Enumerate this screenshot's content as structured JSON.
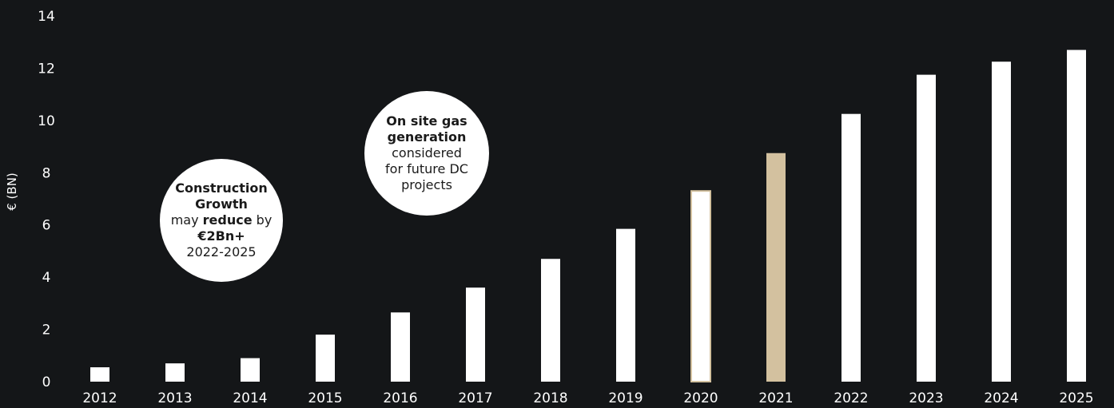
{
  "chart_data": {
    "type": "bar",
    "categories": [
      "2012",
      "2013",
      "2014",
      "2015",
      "2016",
      "2017",
      "2018",
      "2019",
      "2020",
      "2021",
      "2022",
      "2023",
      "2024",
      "2025"
    ],
    "values": [
      0.55,
      0.7,
      0.9,
      1.8,
      2.65,
      3.6,
      4.7,
      5.85,
      7.3,
      8.75,
      10.25,
      11.75,
      12.25,
      12.7
    ],
    "bar_styles": [
      "solid",
      "solid",
      "solid",
      "solid",
      "solid",
      "solid",
      "solid",
      "solid",
      "outlined",
      "tan",
      "solid",
      "solid",
      "solid",
      "solid"
    ],
    "ylabel": "€ (BN)",
    "ylim": [
      0,
      14
    ],
    "yticks": [
      0,
      2,
      4,
      6,
      8,
      10,
      12,
      14
    ],
    "grid": false,
    "colors": {
      "background": "#141618",
      "bar": "#ffffff",
      "accent": "#d3c19f",
      "text": "#ffffff"
    },
    "annotations": [
      {
        "lines": [
          [
            {
              "t": "Construction",
              "b": true
            }
          ],
          [
            {
              "t": "Growth",
              "b": true
            }
          ],
          [
            {
              "t": "may ",
              "b": false
            },
            {
              "t": "reduce",
              "b": true
            },
            {
              "t": " by",
              "b": false
            }
          ],
          [
            {
              "t": "€2Bn+",
              "b": true
            }
          ],
          [
            {
              "t": "2022-2025",
              "b": false
            }
          ]
        ]
      },
      {
        "lines": [
          [
            {
              "t": "On site gas",
              "b": true
            }
          ],
          [
            {
              "t": "generation",
              "b": true
            }
          ],
          [
            {
              "t": "considered",
              "b": false
            }
          ],
          [
            {
              "t": "for future DC",
              "b": false
            }
          ],
          [
            {
              "t": "projects",
              "b": false
            }
          ]
        ]
      }
    ]
  }
}
